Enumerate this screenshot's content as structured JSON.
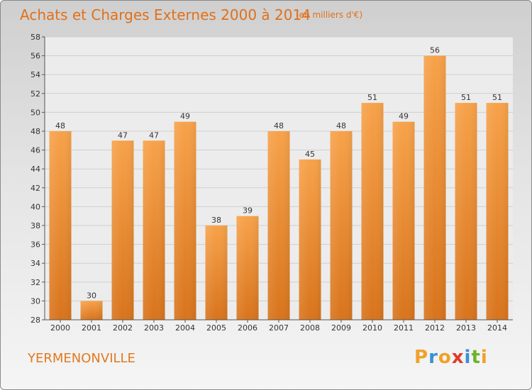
{
  "chart_data": {
    "type": "bar",
    "title": "Achats et Charges Externes 2000 à 2014",
    "subtitle": "(en milliers d'€)",
    "categories": [
      "2000",
      "2001",
      "2002",
      "2003",
      "2004",
      "2005",
      "2006",
      "2007",
      "2008",
      "2009",
      "2010",
      "2011",
      "2012",
      "2013",
      "2014"
    ],
    "values": [
      48,
      30,
      47,
      47,
      49,
      38,
      39,
      48,
      45,
      48,
      51,
      49,
      56,
      51,
      51
    ],
    "ylim": [
      28,
      58
    ],
    "yticks": [
      28,
      30,
      32,
      34,
      36,
      38,
      40,
      42,
      44,
      46,
      48,
      50,
      52,
      54,
      56,
      58
    ],
    "grid": true,
    "bar_color": "#f29a3f"
  },
  "commune": "YERMENONVILLE",
  "logo": {
    "letters": [
      "P",
      "r",
      "o",
      "x",
      "i",
      "t",
      "i"
    ],
    "colors": [
      "#f0a12a",
      "#3a8fd6",
      "#f0a12a",
      "#e23a2a",
      "#3a8fd6",
      "#6ab42d",
      "#f0a12a"
    ]
  }
}
